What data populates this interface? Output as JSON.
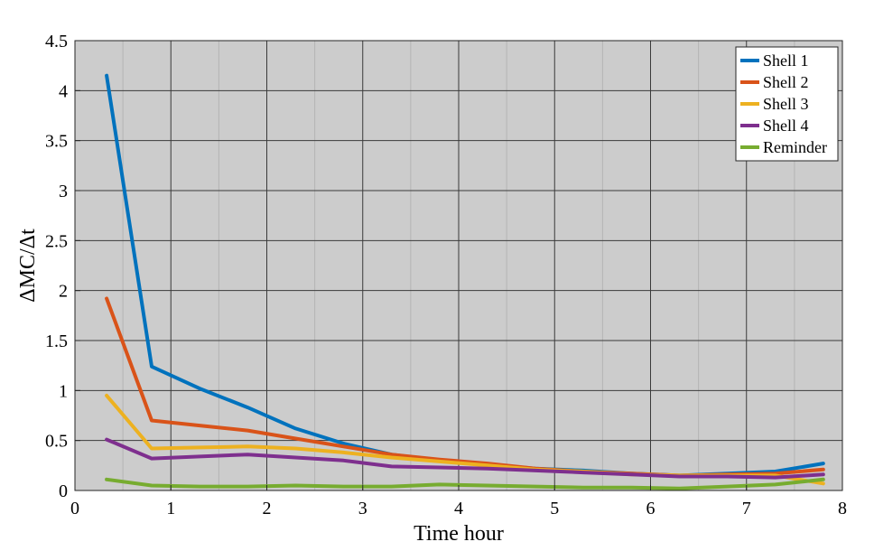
{
  "chart_data": {
    "type": "line",
    "title": "",
    "xlabel": "Time hour",
    "ylabel": "ΔMC/Δt",
    "xlim": [
      0,
      8
    ],
    "ylim": [
      0,
      4.5
    ],
    "xticks": [
      "0",
      "1",
      "2",
      "3",
      "4",
      "5",
      "6",
      "7",
      "8"
    ],
    "yticks": [
      "0",
      "0.5",
      "1",
      "1.5",
      "2",
      "2.5",
      "3",
      "3.5",
      "4",
      "4.5"
    ],
    "grid": true,
    "legend_position": "top-right",
    "background_color": "#cccccc",
    "series": [
      {
        "name": "Shell 1",
        "color": "#0072bd",
        "x": [
          0.33,
          0.8,
          1.3,
          1.8,
          2.3,
          2.8,
          3.3,
          3.8,
          4.3,
          4.8,
          5.3,
          5.8,
          6.3,
          6.8,
          7.3,
          7.8
        ],
        "y": [
          4.15,
          1.24,
          1.02,
          0.83,
          0.62,
          0.47,
          0.36,
          0.3,
          0.26,
          0.22,
          0.2,
          0.17,
          0.15,
          0.17,
          0.19,
          0.27
        ]
      },
      {
        "name": "Shell 2",
        "color": "#d95319",
        "x": [
          0.33,
          0.8,
          1.3,
          1.8,
          2.3,
          2.8,
          3.3,
          3.8,
          4.3,
          4.8,
          5.3,
          5.8,
          6.3,
          6.8,
          7.3,
          7.8
        ],
        "y": [
          1.92,
          0.7,
          0.65,
          0.6,
          0.52,
          0.44,
          0.36,
          0.31,
          0.27,
          0.22,
          0.19,
          0.17,
          0.15,
          0.16,
          0.17,
          0.21
        ]
      },
      {
        "name": "Shell 3",
        "color": "#edb120",
        "x": [
          0.33,
          0.8,
          1.3,
          1.8,
          2.3,
          2.8,
          3.3,
          3.8,
          4.3,
          4.8,
          5.3,
          5.8,
          6.3,
          6.8,
          7.3,
          7.8
        ],
        "y": [
          0.95,
          0.42,
          0.43,
          0.44,
          0.42,
          0.38,
          0.33,
          0.29,
          0.25,
          0.21,
          0.19,
          0.16,
          0.15,
          0.15,
          0.15,
          0.07
        ]
      },
      {
        "name": "Shell 4",
        "color": "#7e2f8e",
        "x": [
          0.33,
          0.8,
          1.3,
          1.8,
          2.3,
          2.8,
          3.3,
          3.8,
          4.3,
          4.8,
          5.3,
          5.8,
          6.3,
          6.8,
          7.3,
          7.8
        ],
        "y": [
          0.51,
          0.32,
          0.34,
          0.36,
          0.33,
          0.3,
          0.24,
          0.23,
          0.22,
          0.2,
          0.18,
          0.16,
          0.14,
          0.14,
          0.13,
          0.16
        ]
      },
      {
        "name": "Reminder",
        "color": "#77ac30",
        "x": [
          0.33,
          0.8,
          1.3,
          1.8,
          2.3,
          2.8,
          3.3,
          3.8,
          4.3,
          4.8,
          5.3,
          5.8,
          6.3,
          6.8,
          7.3,
          7.8
        ],
        "y": [
          0.11,
          0.05,
          0.04,
          0.04,
          0.05,
          0.04,
          0.04,
          0.06,
          0.05,
          0.04,
          0.03,
          0.03,
          0.02,
          0.04,
          0.06,
          0.11
        ]
      }
    ]
  }
}
